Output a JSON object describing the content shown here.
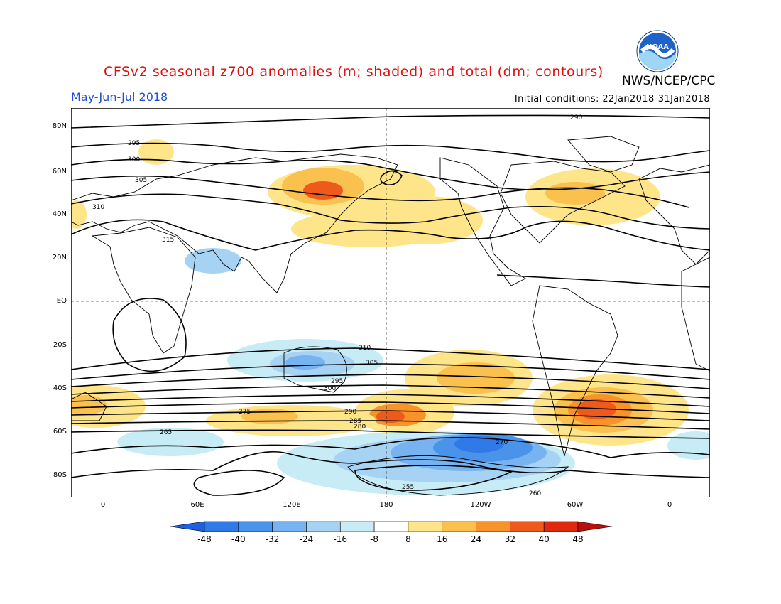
{
  "header": {
    "title": "CFSv2 seasonal z700 anomalies (m; shaded) and total (dm; contours)",
    "agency": "NWS/NCEP/CPC",
    "season": "May-Jun-Jul 2018",
    "initial_conditions": "Initial conditions: 22Jan2018-31Jan2018",
    "logo_text": "NOAA"
  },
  "map": {
    "lat_labels": [
      "80N",
      "60N",
      "40N",
      "20N",
      "EQ",
      "20S",
      "40S",
      "60S",
      "80S"
    ],
    "lon_labels": [
      "0",
      "60E",
      "120E",
      "180",
      "120W",
      "60W",
      "0"
    ],
    "contour_labels": [
      "290",
      "295",
      "300",
      "305",
      "310",
      "315",
      "310",
      "305",
      "300",
      "295",
      "290",
      "285",
      "280",
      "275",
      "270",
      "265",
      "260",
      "255"
    ]
  },
  "colorbar": {
    "tick_labels": [
      "-48",
      "-40",
      "-32",
      "-24",
      "-16",
      "-8",
      "8",
      "16",
      "24",
      "32",
      "40",
      "48"
    ],
    "colors": [
      "#1f5fe0",
      "#2f7ae6",
      "#4a93ea",
      "#77b3f0",
      "#a6d2f4",
      "#c8ecf6",
      "#ffffff",
      "#ffe58a",
      "#fbc14e",
      "#f7932a",
      "#ee5a1c",
      "#e0280f",
      "#b8100a"
    ]
  }
}
